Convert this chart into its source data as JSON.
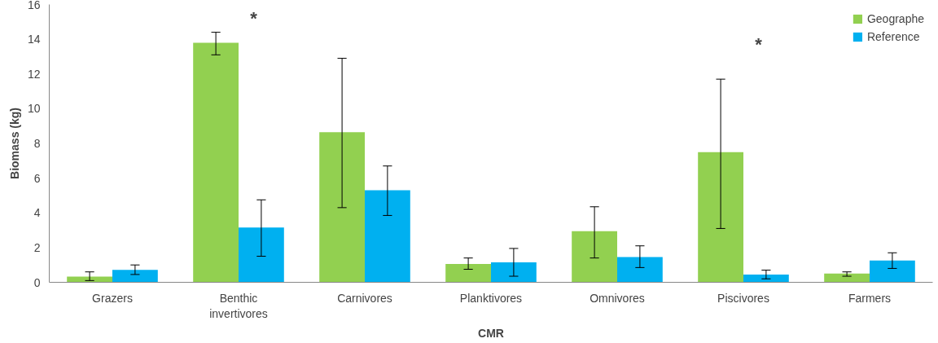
{
  "chart_data": {
    "type": "bar",
    "xlabel": "CMR",
    "ylabel": "Biomass (kg)",
    "categories": [
      "Grazers",
      "Benthic invertivores",
      "Carnivores",
      "Planktivores",
      "Omnivores",
      "Piscivores",
      "Farmers"
    ],
    "series": [
      {
        "name": "Geographe",
        "color": "#92d050",
        "values": [
          0.33,
          13.8,
          8.65,
          1.05,
          2.95,
          7.5,
          0.5
        ],
        "errors": [
          [
            0.1,
            0.6
          ],
          [
            13.1,
            14.4
          ],
          [
            4.3,
            12.9
          ],
          [
            0.75,
            1.4
          ],
          [
            1.4,
            4.35
          ],
          [
            3.1,
            11.7
          ],
          [
            0.35,
            0.6
          ]
        ]
      },
      {
        "name": "Reference",
        "color": "#00b0f0",
        "values": [
          0.72,
          3.15,
          5.3,
          1.15,
          1.45,
          0.45,
          1.25
        ],
        "errors": [
          [
            0.45,
            1.0
          ],
          [
            1.5,
            4.75
          ],
          [
            3.85,
            6.7
          ],
          [
            0.35,
            1.95
          ],
          [
            0.85,
            2.1
          ],
          [
            0.2,
            0.7
          ],
          [
            0.8,
            1.7
          ]
        ]
      }
    ],
    "ylim": [
      0,
      16
    ],
    "yticks": [
      0,
      2,
      4,
      6,
      8,
      10,
      12,
      14,
      16
    ],
    "grid": false,
    "legend": "top right",
    "annotations": [
      "*",
      "*"
    ]
  }
}
